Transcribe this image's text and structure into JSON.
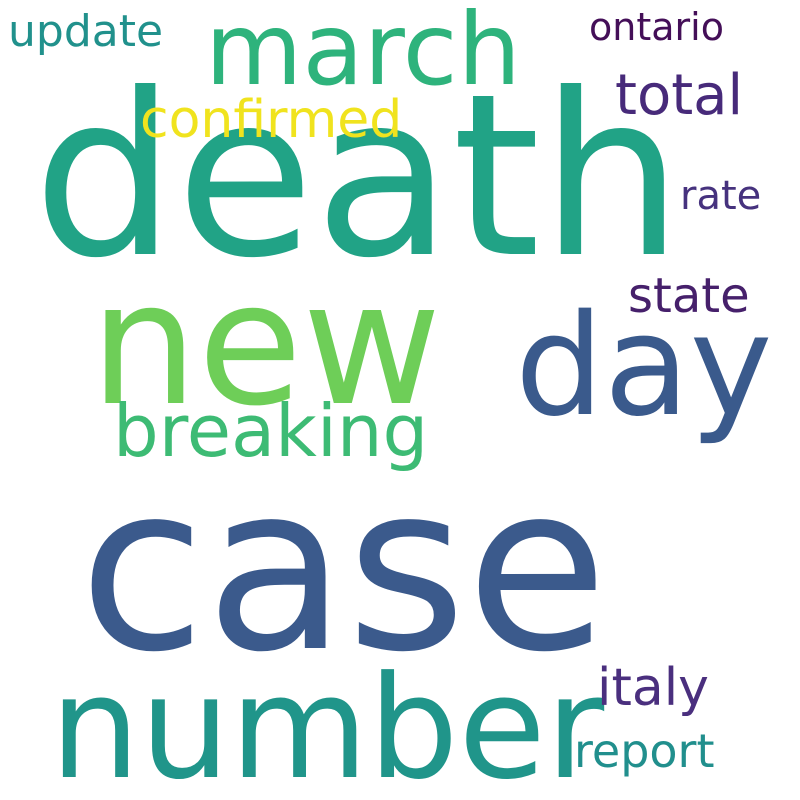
{
  "words": [
    {
      "text": "case",
      "color": "#3b5a8c"
    },
    {
      "text": "death",
      "color": "#21a386"
    },
    {
      "text": "new",
      "color": "#6ece58"
    },
    {
      "text": "number",
      "color": "#20958a"
    },
    {
      "text": "march",
      "color": "#2eb37c"
    },
    {
      "text": "day",
      "color": "#3a5a8c"
    },
    {
      "text": "breaking",
      "color": "#3dbb74"
    },
    {
      "text": "confirmed",
      "color": "#f0e31e"
    },
    {
      "text": "total",
      "color": "#472a7a"
    },
    {
      "text": "italy",
      "color": "#4a2f7e"
    },
    {
      "text": "state",
      "color": "#46206b"
    },
    {
      "text": "report",
      "color": "#218f8d"
    },
    {
      "text": "update",
      "color": "#21918c"
    },
    {
      "text": "ontario",
      "color": "#440f58"
    },
    {
      "text": "rate",
      "color": "#46327e"
    }
  ]
}
